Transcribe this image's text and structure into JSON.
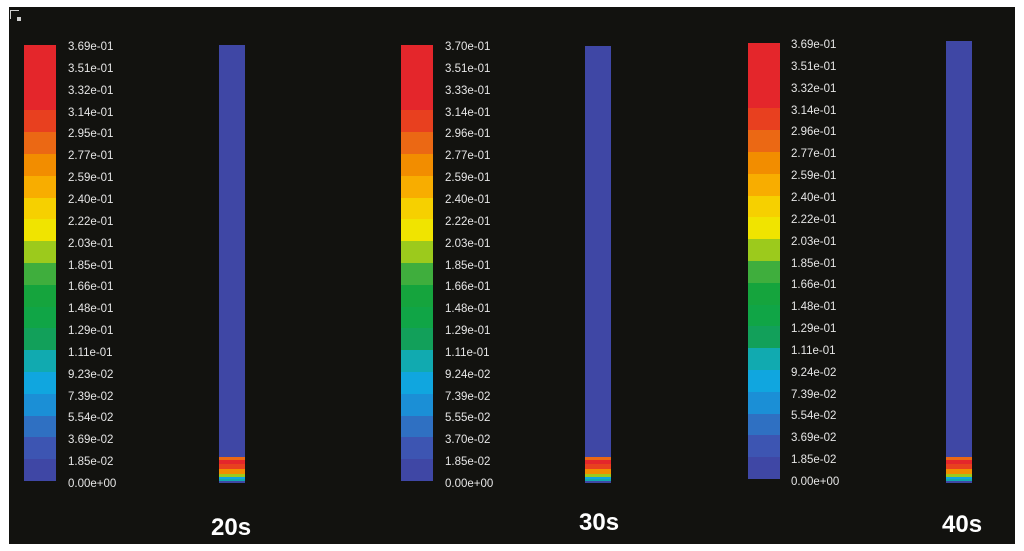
{
  "palette": [
    "#3f47a5",
    "#3d55b2",
    "#2f70c2",
    "#1b8fd6",
    "#10a6df",
    "#11aab0",
    "#12a05a",
    "#10a546",
    "#15a43d",
    "#3fae3d",
    "#9cca1c",
    "#f0e400",
    "#f6d000",
    "#f8ad00",
    "#f28d00",
    "#eb6814",
    "#e8401f",
    "#e4262b"
  ],
  "panels": [
    {
      "time_label": "20s",
      "legend": [
        "3.69e-01",
        "3.51e-01",
        "3.32e-01",
        "3.14e-01",
        "2.95e-01",
        "2.77e-01",
        "2.59e-01",
        "2.40e-01",
        "2.22e-01",
        "2.03e-01",
        "1.85e-01",
        "1.66e-01",
        "1.48e-01",
        "1.29e-01",
        "1.11e-01",
        "9.23e-02",
        "7.39e-02",
        "5.54e-02",
        "3.69e-02",
        "1.85e-02",
        "0.00e+00"
      ]
    },
    {
      "time_label": "30s",
      "legend": [
        "3.70e-01",
        "3.51e-01",
        "3.33e-01",
        "3.14e-01",
        "2.96e-01",
        "2.77e-01",
        "2.59e-01",
        "2.40e-01",
        "2.22e-01",
        "2.03e-01",
        "1.85e-01",
        "1.66e-01",
        "1.48e-01",
        "1.29e-01",
        "1.11e-01",
        "9.24e-02",
        "7.39e-02",
        "5.55e-02",
        "3.70e-02",
        "1.85e-02",
        "0.00e+00"
      ]
    },
    {
      "time_label": "40s",
      "legend": [
        "3.69e-01",
        "3.51e-01",
        "3.32e-01",
        "3.14e-01",
        "2.96e-01",
        "2.77e-01",
        "2.59e-01",
        "2.40e-01",
        "2.22e-01",
        "2.03e-01",
        "1.85e-01",
        "1.66e-01",
        "1.48e-01",
        "1.29e-01",
        "1.11e-01",
        "9.24e-02",
        "7.39e-02",
        "5.54e-02",
        "3.69e-02",
        "1.85e-02",
        "0.00e+00"
      ]
    }
  ]
}
